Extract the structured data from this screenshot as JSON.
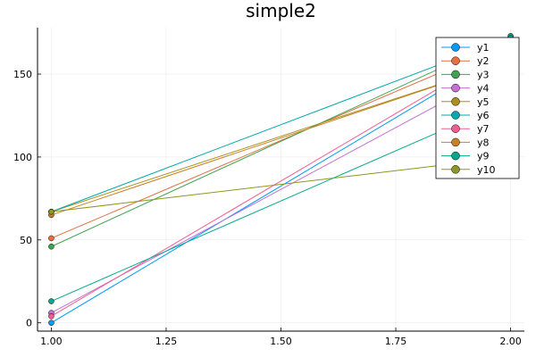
{
  "chart_data": {
    "type": "line",
    "title": "simple2",
    "xlabel": "",
    "ylabel": "",
    "x": [
      1.0,
      2.0
    ],
    "xlim": [
      0.97,
      2.03
    ],
    "ylim": [
      -5,
      178
    ],
    "x_ticks": [
      1.0,
      1.25,
      1.5,
      1.75,
      2.0
    ],
    "x_tick_labels": [
      "1.00",
      "1.25",
      "1.50",
      "1.75",
      "2.00"
    ],
    "y_ticks": [
      0,
      50,
      100,
      150
    ],
    "y_tick_labels": [
      "0",
      "50",
      "100",
      "150"
    ],
    "grid": true,
    "legend_position": "top-right",
    "markers": true,
    "series": [
      {
        "name": "y1",
        "values": [
          0,
          165
        ],
        "color": "#009AFA"
      },
      {
        "name": "y2",
        "values": [
          51,
          169
        ],
        "color": "#E36F47"
      },
      {
        "name": "y3",
        "values": [
          46,
          173
        ],
        "color": "#3EA44E"
      },
      {
        "name": "y4",
        "values": [
          6,
          155
        ],
        "color": "#C371D2"
      },
      {
        "name": "y5",
        "values": [
          67,
          158
        ],
        "color": "#AC8E18"
      },
      {
        "name": "y6",
        "values": [
          67,
          172
        ],
        "color": "#00A9AD"
      },
      {
        "name": "y7",
        "values": [
          4,
          167
        ],
        "color": "#ED5E93"
      },
      {
        "name": "y8",
        "values": [
          65,
          158
        ],
        "color": "#C68225"
      },
      {
        "name": "y9",
        "values": [
          13,
          134
        ],
        "color": "#00A98D"
      },
      {
        "name": "y10",
        "values": [
          67,
          100
        ],
        "color": "#8E971E"
      }
    ]
  }
}
